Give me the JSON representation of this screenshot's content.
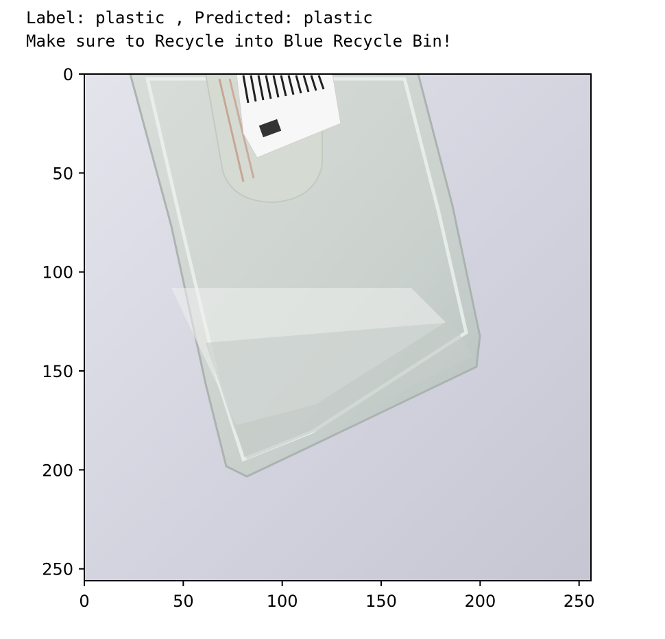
{
  "title_lines": [
    "Label: plastic , Predicted: plastic",
    "Make sure to Recycle into Blue Recycle Bin!"
  ],
  "colors": {
    "background": "#ffffff",
    "image_bg": "#d7d7e2",
    "plastic": "#cfd6d2",
    "axis": "#000000"
  },
  "chart_data": {
    "type": "image",
    "title": "Label: plastic , Predicted: plastic\nMake sure to Recycle into Blue Recycle Bin!",
    "xlabel": "",
    "ylabel": "",
    "xlim": [
      0,
      256
    ],
    "ylim": [
      256,
      0
    ],
    "x_ticks": [
      0,
      50,
      100,
      150,
      200,
      250
    ],
    "y_ticks": [
      0,
      50,
      100,
      150,
      200,
      250
    ],
    "grid": false,
    "image_content": "photo of a clear plastic container"
  }
}
